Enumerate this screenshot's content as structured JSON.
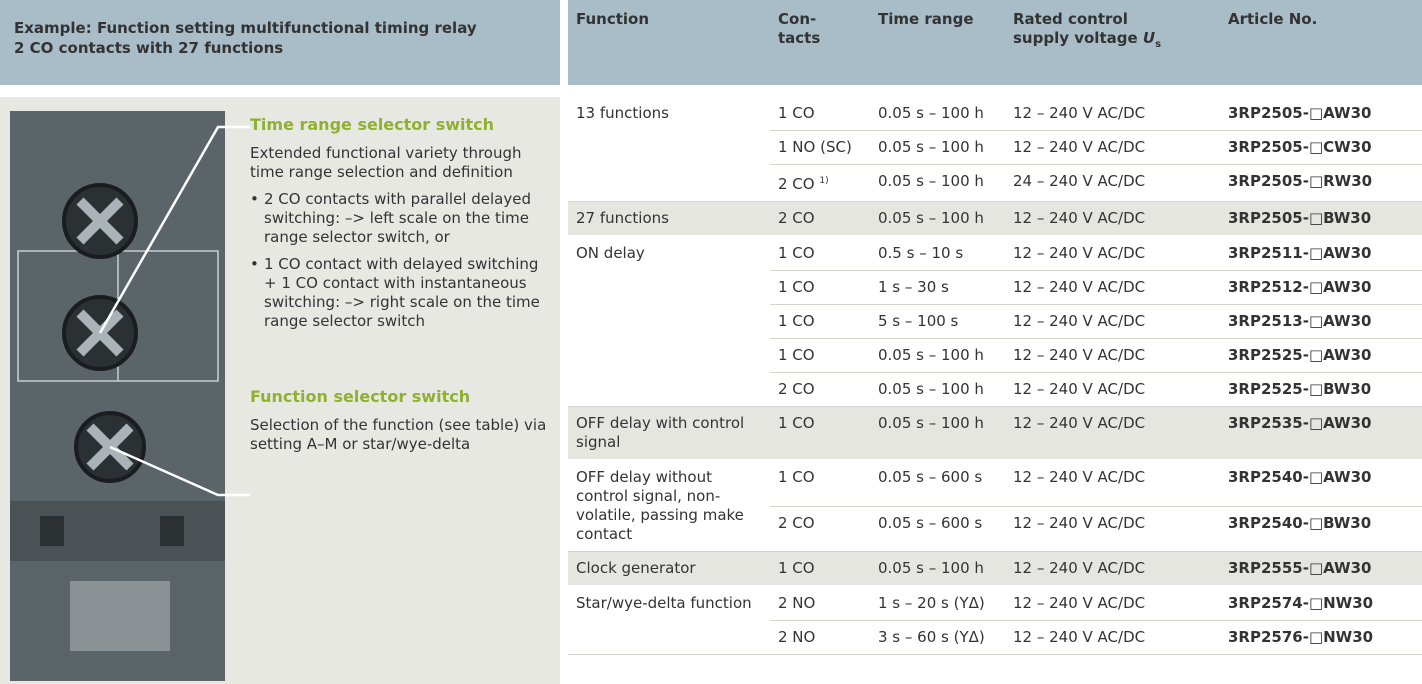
{
  "left": {
    "header": [
      "Example: Function setting multifunctional timing relay",
      "2 CO contacts with 27 functions"
    ],
    "time_range": {
      "title": "Time range selector switch",
      "text": "Extended functional variety through time range selection and definition",
      "bullets": [
        "2 CO contacts with parallel delayed switching: –> left scale on the time range selector switch, or",
        "1 CO contact with delayed switching + 1 CO contact with instantaneous switching: –> right scale on the time range selector switch"
      ]
    },
    "function": {
      "title": "Function selector switch",
      "text": "Selection of the function (see table) via setting A–M or star/wye-delta"
    }
  },
  "table": {
    "headers": [
      {
        "lines": [
          "Function"
        ]
      },
      {
        "lines": [
          "Con-",
          "tacts"
        ]
      },
      {
        "lines": [
          "Time range"
        ]
      },
      {
        "lines": [
          "Rated control",
          "supply voltage"
        ],
        "symbol": "U",
        "subscript": "s"
      },
      {
        "lines": [
          "Article No."
        ]
      }
    ],
    "groups": [
      {
        "function": "13 functions",
        "rows": [
          {
            "contacts": "1 CO",
            "time": "0.05 s – 100 h",
            "voltage": "12 – 240 V AC/DC",
            "article": "3RP2505-□AW30"
          },
          {
            "contacts": "1 NO (SC)",
            "time": "0.05 s – 100 h",
            "voltage": "12 – 240 V AC/DC",
            "article": "3RP2505-□CW30"
          },
          {
            "contacts": "2 CO",
            "note": "1)",
            "time": "0.05 s – 100 h",
            "voltage": "24 – 240 V AC/DC",
            "article": "3RP2505-□RW30"
          }
        ]
      },
      {
        "function": "27 functions",
        "rows": [
          {
            "contacts": "2 CO",
            "time": "0.05 s – 100 h",
            "voltage": "12 – 240 V AC/DC",
            "article": "3RP2505-□BW30"
          }
        ]
      },
      {
        "function": "ON delay",
        "rows": [
          {
            "contacts": "1 CO",
            "time": "0.5 s – 10 s",
            "voltage": "12 – 240 V AC/DC",
            "article": "3RP2511-□AW30"
          },
          {
            "contacts": "1 CO",
            "time": "1 s – 30 s",
            "voltage": "12 – 240 V AC/DC",
            "article": "3RP2512-□AW30"
          },
          {
            "contacts": "1 CO",
            "time": "5 s – 100 s",
            "voltage": "12 – 240 V AC/DC",
            "article": "3RP2513-□AW30"
          },
          {
            "contacts": "1 CO",
            "time": "0.05 s – 100 h",
            "voltage": "12 – 240 V AC/DC",
            "article": "3RP2525-□AW30"
          },
          {
            "contacts": "2 CO",
            "time": "0.05 s – 100 h",
            "voltage": "12 – 240 V AC/DC",
            "article": "3RP2525-□BW30"
          }
        ]
      },
      {
        "function": "OFF delay with control signal",
        "rows": [
          {
            "contacts": "1 CO",
            "time": "0.05 s – 100 h",
            "voltage": "12 – 240 V AC/DC",
            "article": "3RP2535-□AW30"
          }
        ]
      },
      {
        "function": "OFF delay without control signal, non-volatile, passing make contact",
        "rows": [
          {
            "contacts": "1 CO",
            "time": "0.05 s – 600 s",
            "voltage": "12 – 240 V AC/DC",
            "article": "3RP2540-□AW30"
          },
          {
            "contacts": "2 CO",
            "time": "0.05 s – 600 s",
            "voltage": "12 – 240 V AC/DC",
            "article": "3RP2540-□BW30"
          }
        ]
      },
      {
        "function": "Clock generator",
        "rows": [
          {
            "contacts": "1 CO",
            "time": "0.05 s – 100 h",
            "voltage": "12 – 240 V AC/DC",
            "article": "3RP2555-□AW30"
          }
        ]
      },
      {
        "function": "Star/wye-delta function",
        "rows": [
          {
            "contacts": "2 NO",
            "time": "1 s – 20 s (YΔ)",
            "voltage": "12 – 240 V AC/DC",
            "article": "3RP2574-□NW30"
          },
          {
            "contacts": "2 NO",
            "time": "3 s – 60 s (YΔ)",
            "voltage": "12 – 240 V AC/DC",
            "article": "3RP2576-□NW30"
          }
        ]
      }
    ]
  }
}
